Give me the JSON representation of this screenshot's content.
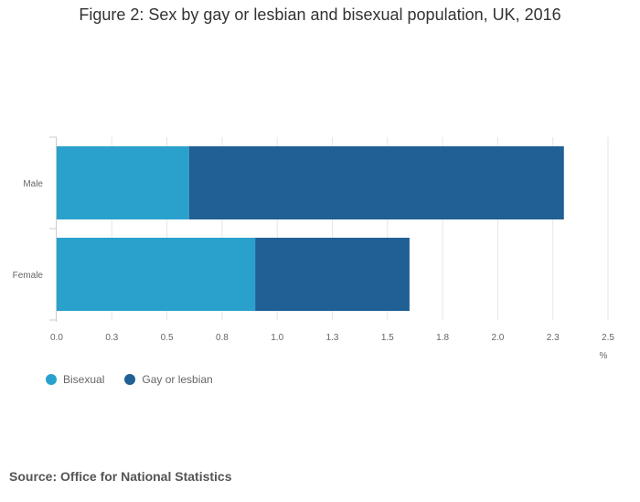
{
  "chart_data": {
    "type": "bar",
    "orientation": "horizontal",
    "stacked": true,
    "title": "Figure 2: Sex by gay or lesbian and bisexual population, UK, 2016",
    "categories": [
      "Male",
      "Female"
    ],
    "series": [
      {
        "name": "Bisexual",
        "color": "#2aa1cd",
        "values": [
          0.6,
          0.9
        ]
      },
      {
        "name": "Gay or lesbian",
        "color": "#206095",
        "values": [
          1.7,
          0.7
        ]
      }
    ],
    "xlim": [
      0,
      2.5
    ],
    "x_ticks": [
      0,
      0.25,
      0.5,
      0.75,
      1.0,
      1.25,
      1.5,
      1.75,
      2.0,
      2.25,
      2.5
    ],
    "x_tick_labels": [
      "0.0",
      "0.3",
      "0.5",
      "0.8",
      "1.0",
      "1.3",
      "1.5",
      "1.8",
      "2.0",
      "2.3",
      "2.5"
    ],
    "xlabel": "%",
    "grid": true,
    "legend_position": "bottom-left"
  },
  "source": "Source: Office for National Statistics"
}
